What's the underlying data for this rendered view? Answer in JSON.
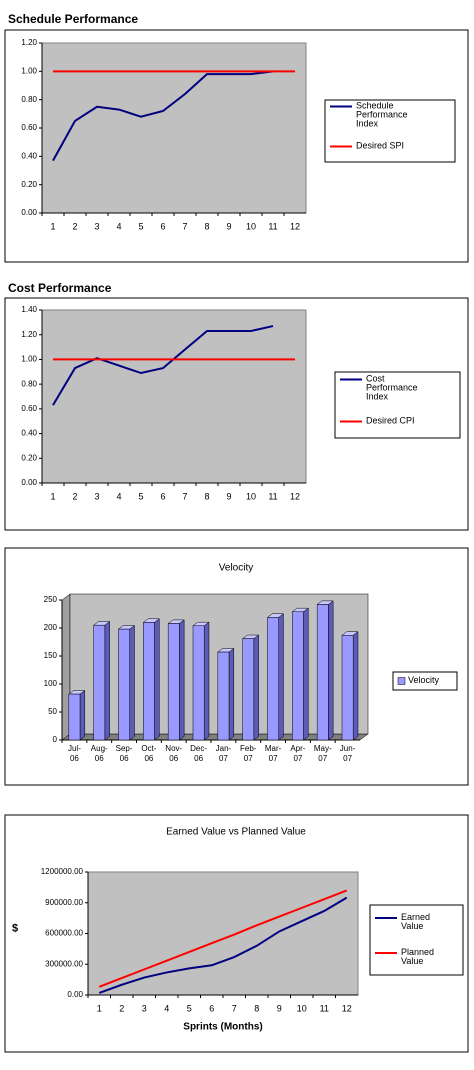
{
  "chart_data": [
    {
      "type": "line",
      "title": "Schedule Performance",
      "categories": [
        "1",
        "2",
        "3",
        "4",
        "5",
        "6",
        "7",
        "8",
        "9",
        "10",
        "11",
        "12"
      ],
      "series": [
        {
          "name": "Schedule Performance Index",
          "color": "#000080",
          "values": [
            0.37,
            0.65,
            0.75,
            0.73,
            0.68,
            0.72,
            0.84,
            0.98,
            0.98,
            0.98,
            1.0,
            null
          ]
        },
        {
          "name": "Desired SPI",
          "color": "#ff0000",
          "values": [
            1.0,
            1.0,
            1.0,
            1.0,
            1.0,
            1.0,
            1.0,
            1.0,
            1.0,
            1.0,
            1.0,
            1.0
          ]
        }
      ],
      "ylim": [
        0,
        1.2
      ],
      "yticks": [
        {
          "value": 0,
          "label": "0.00"
        },
        {
          "value": 0.2,
          "label": "0.20"
        },
        {
          "value": 0.4,
          "label": "0.40"
        },
        {
          "value": 0.6,
          "label": "0.60"
        },
        {
          "value": 0.8,
          "label": "0.80"
        },
        {
          "value": 1.0,
          "label": "1.00"
        },
        {
          "value": 1.2,
          "label": "1.20"
        }
      ],
      "grid": false,
      "legend": "right"
    },
    {
      "type": "line",
      "title": "Cost Performance",
      "categories": [
        "1",
        "2",
        "3",
        "4",
        "5",
        "6",
        "7",
        "8",
        "9",
        "10",
        "11",
        "12"
      ],
      "series": [
        {
          "name": "Cost Performance Index",
          "color": "#000080",
          "values": [
            0.63,
            0.93,
            1.01,
            0.95,
            0.89,
            0.93,
            1.08,
            1.23,
            1.23,
            1.23,
            1.27,
            null
          ]
        },
        {
          "name": "Desired CPI",
          "color": "#ff0000",
          "values": [
            1.0,
            1.0,
            1.0,
            1.0,
            1.0,
            1.0,
            1.0,
            1.0,
            1.0,
            1.0,
            1.0,
            1.0
          ]
        }
      ],
      "ylim": [
        0,
        1.4
      ],
      "yticks": [
        {
          "value": 0,
          "label": "0.00"
        },
        {
          "value": 0.2,
          "label": "0.20"
        },
        {
          "value": 0.4,
          "label": "0.40"
        },
        {
          "value": 0.6,
          "label": "0.60"
        },
        {
          "value": 0.8,
          "label": "0.80"
        },
        {
          "value": 1.0,
          "label": "1.00"
        },
        {
          "value": 1.2,
          "label": "1.20"
        },
        {
          "value": 1.4,
          "label": "1.40"
        }
      ],
      "grid": false,
      "legend": "right"
    },
    {
      "type": "bar",
      "title": "Velocity",
      "categories": [
        "Jul-06",
        "Aug-06",
        "Sep-06",
        "Oct-06",
        "Nov-06",
        "Dec-06",
        "Jan-07",
        "Feb-07",
        "Mar-07",
        "Apr-07",
        "May-07",
        "Jun-07"
      ],
      "series": [
        {
          "name": "Velocity",
          "color": "#9999ff",
          "values": [
            82,
            205,
            198,
            210,
            208,
            204,
            157,
            181,
            219,
            229,
            242,
            187
          ]
        }
      ],
      "ylim": [
        0,
        250
      ],
      "yticks": [
        0,
        50,
        100,
        150,
        200,
        250
      ],
      "grid": false,
      "legend": "right"
    },
    {
      "type": "line",
      "title": "Earned Value vs Planned Value",
      "x_label": "Sprints (Months)",
      "y_label": "$",
      "categories": [
        "1",
        "2",
        "3",
        "4",
        "5",
        "6",
        "7",
        "8",
        "9",
        "10",
        "11",
        "12"
      ],
      "series": [
        {
          "name": "Earned Value",
          "color": "#000080",
          "values": [
            20000,
            100000,
            170000,
            220000,
            260000,
            290000,
            370000,
            480000,
            620000,
            720000,
            820000,
            950000
          ]
        },
        {
          "name": "Planned Value",
          "color": "#ff0000",
          "values": [
            80000,
            165000,
            250000,
            335000,
            420000,
            505000,
            590000,
            680000,
            765000,
            850000,
            935000,
            1020000
          ]
        }
      ],
      "ylim": [
        0,
        1200000
      ],
      "yticks": [
        {
          "value": 0,
          "label": "0.00"
        },
        {
          "value": 300000,
          "label": "300000.00"
        },
        {
          "value": 600000,
          "label": "600000.00"
        },
        {
          "value": 900000,
          "label": "900000.00"
        },
        {
          "value": 1200000,
          "label": "1200000.00"
        }
      ],
      "grid": false,
      "legend": "right"
    }
  ]
}
